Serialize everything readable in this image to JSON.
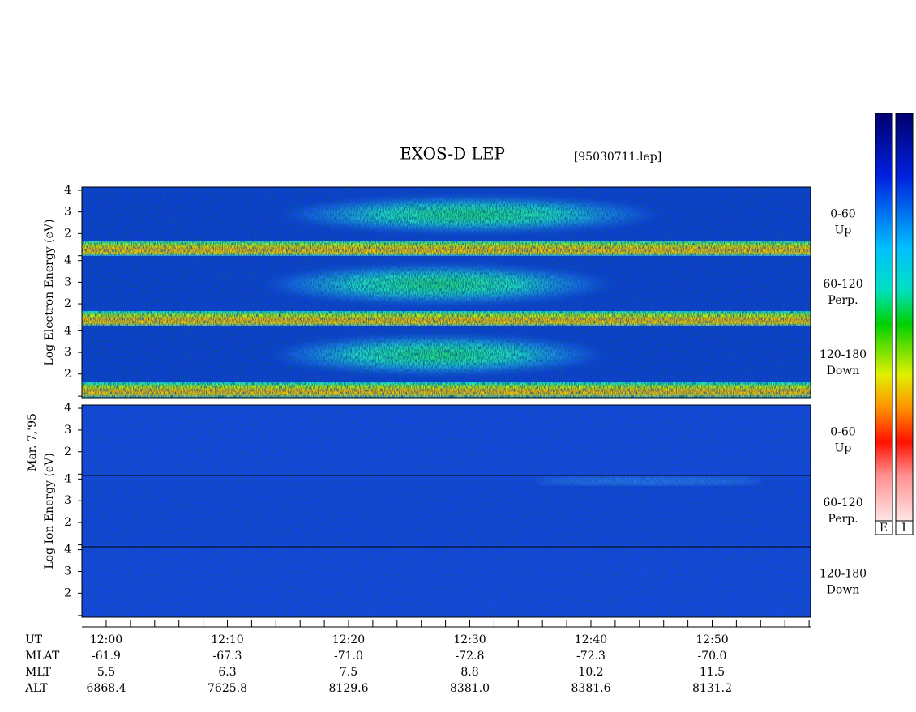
{
  "header": {
    "title": "EXOS-D LEP",
    "file": "[95030711.lep]"
  },
  "date": "Mar. 7,'95",
  "groups": [
    {
      "label": "Log Electron Energy (eV)",
      "panels": [
        {
          "range": "0-60",
          "dir": "Up",
          "yticks": [
            2,
            3,
            4
          ]
        },
        {
          "range": "60-120",
          "dir": "Perp.",
          "yticks": [
            2,
            3,
            4
          ]
        },
        {
          "range": "120-180",
          "dir": "Down",
          "yticks": [
            2,
            3,
            4
          ]
        }
      ]
    },
    {
      "label": "Log Ion Energy (eV)",
      "panels": [
        {
          "range": "0-60",
          "dir": "Up",
          "yticks": [
            2,
            3,
            4
          ]
        },
        {
          "range": "60-120",
          "dir": "Perp.",
          "yticks": [
            2,
            3,
            4
          ]
        },
        {
          "range": "120-180",
          "dir": "Down",
          "yticks": [
            2,
            3,
            4
          ]
        }
      ]
    }
  ],
  "ylim": [
    0.9,
    4.15
  ],
  "axis_table": {
    "row_labels": [
      "UT",
      "MLAT",
      "MLT",
      "ALT"
    ],
    "columns": [
      [
        "12:00",
        "-61.9",
        "5.5",
        "6868.4"
      ],
      [
        "12:10",
        "-67.3",
        "6.3",
        "7625.8"
      ],
      [
        "12:20",
        "-71.0",
        "7.5",
        "8129.6"
      ],
      [
        "12:30",
        "-72.8",
        "8.8",
        "8381.0"
      ],
      [
        "12:40",
        "-72.3",
        "10.2",
        "8381.6"
      ],
      [
        "12:50",
        "-70.0",
        "11.5",
        "8131.2"
      ]
    ]
  },
  "colorbars": [
    "E",
    "I"
  ]
}
